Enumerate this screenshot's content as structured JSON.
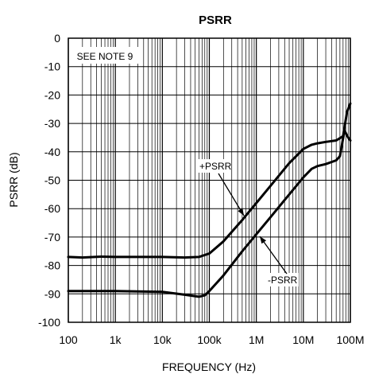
{
  "chart_data": {
    "type": "line",
    "title": "PSRR",
    "xlabel": "FREQUENCY (Hz)",
    "ylabel": "PSRR (dB)",
    "x_scale": "log",
    "xlim": [
      100,
      100000000
    ],
    "ylim": [
      -100,
      0
    ],
    "grid": true,
    "x_ticks": [
      100,
      1000,
      10000,
      100000,
      1000000,
      10000000,
      100000000
    ],
    "x_tick_labels": [
      "100",
      "1k",
      "10k",
      "100k",
      "1M",
      "10M",
      "100M"
    ],
    "y_ticks": [
      0,
      -10,
      -20,
      -30,
      -40,
      -50,
      -60,
      -70,
      -80,
      -90,
      -100
    ],
    "y_tick_labels": [
      "0",
      "-10",
      "-20",
      "-30",
      "-40",
      "-50",
      "-60",
      "-70",
      "-80",
      "-90",
      "-100"
    ],
    "note": "SEE NOTE 9",
    "line_color": "#000000",
    "series": [
      {
        "name": "+PSRR",
        "x": [
          100,
          200,
          500,
          1000,
          3000,
          10000,
          30000,
          60000,
          100000,
          200000,
          500000,
          1000000,
          2000000,
          5000000,
          10000000,
          15000000,
          20000000,
          30000000,
          50000000,
          70000000,
          85000000,
          100000000
        ],
        "y": [
          -77,
          -77.2,
          -76.9,
          -77,
          -77,
          -77,
          -77.2,
          -77,
          -75.8,
          -71.5,
          -64,
          -58,
          -52,
          -44,
          -39,
          -37.5,
          -37,
          -36.5,
          -36,
          -34.5,
          -26,
          -23
        ]
      },
      {
        "name": "-PSRR",
        "x": [
          100,
          1000,
          10000,
          30000,
          60000,
          80000,
          100000,
          200000,
          500000,
          1000000,
          2000000,
          5000000,
          10000000,
          15000000,
          20000000,
          30000000,
          50000000,
          60000000,
          75000000,
          90000000,
          100000000
        ],
        "y": [
          -89,
          -89,
          -89.3,
          -90.3,
          -91,
          -90.5,
          -89,
          -83.5,
          -75,
          -69,
          -63,
          -55,
          -49,
          -46,
          -45,
          -44.3,
          -43,
          -41.5,
          -32.5,
          -35,
          -36
        ]
      }
    ],
    "annotations": [
      {
        "text": "+PSRR",
        "series": 0
      },
      {
        "text": "-PSRR",
        "series": 1
      }
    ]
  }
}
